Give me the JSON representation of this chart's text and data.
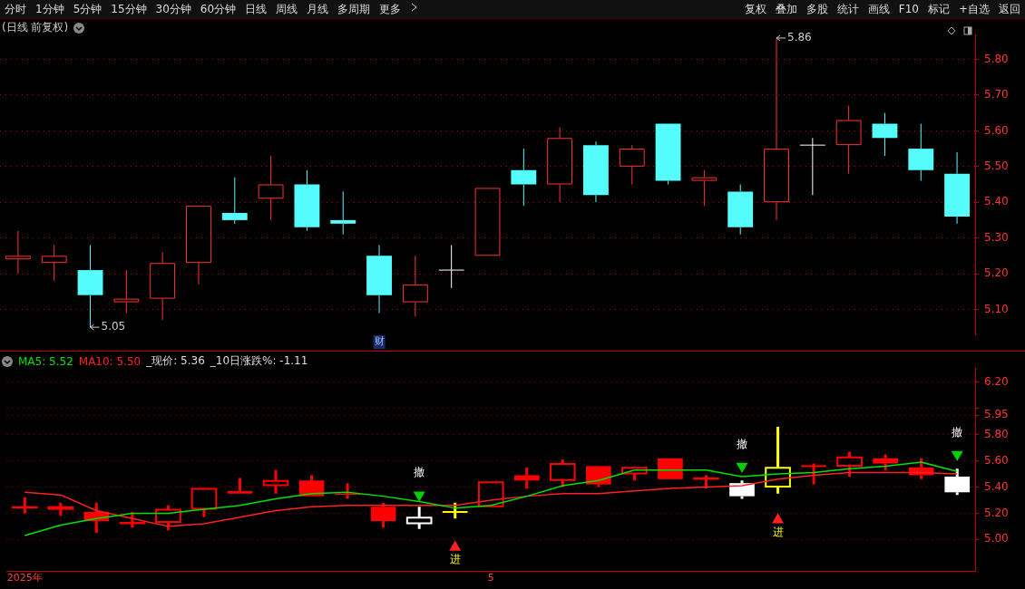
{
  "chart_data": [
    {
      "type": "other",
      "annotations": [
        "分时",
        "1分钟",
        "5分钟",
        "15分钟",
        "30分钟",
        "60分钟",
        "日线",
        "周线",
        "月线",
        "多周期",
        "更多",
        "复权",
        "叠加",
        "多股",
        "统计",
        "画线",
        "F10",
        "标记",
        "+自选",
        "返回"
      ]
    },
    {
      "type": "candlestick",
      "title": "(日线 前复权)",
      "categories": [
        null,
        null,
        null,
        null,
        null,
        null,
        null,
        null,
        null,
        null,
        "财",
        null,
        null,
        null,
        null,
        null,
        null,
        null,
        null,
        null,
        null,
        null,
        null,
        null,
        null,
        null,
        null
      ],
      "ohlc": [
        [
          5.24,
          5.32,
          5.2,
          5.25
        ],
        [
          5.23,
          5.28,
          5.18,
          5.25
        ],
        [
          5.21,
          5.28,
          5.05,
          5.14
        ],
        [
          5.12,
          5.21,
          5.09,
          5.13
        ],
        [
          5.13,
          5.26,
          5.07,
          5.23
        ],
        [
          5.23,
          5.39,
          5.17,
          5.39
        ],
        [
          5.37,
          5.47,
          5.34,
          5.35
        ],
        [
          5.41,
          5.53,
          5.35,
          5.45
        ],
        [
          5.45,
          5.49,
          5.32,
          5.33
        ],
        [
          5.35,
          5.43,
          5.31,
          5.34
        ],
        [
          5.25,
          5.28,
          5.09,
          5.14
        ],
        [
          5.12,
          5.25,
          5.08,
          5.17
        ],
        [
          5.21,
          5.28,
          5.16,
          5.21
        ],
        [
          5.25,
          5.44,
          5.25,
          5.44
        ],
        [
          5.49,
          5.55,
          5.39,
          5.45
        ],
        [
          5.45,
          5.61,
          5.4,
          5.58
        ],
        [
          5.56,
          5.57,
          5.4,
          5.42
        ],
        [
          5.5,
          5.56,
          5.45,
          5.55
        ],
        [
          5.62,
          5.62,
          5.45,
          5.46
        ],
        [
          5.46,
          5.49,
          5.39,
          5.47
        ],
        [
          5.43,
          5.45,
          5.31,
          5.33
        ],
        [
          5.4,
          5.86,
          5.35,
          5.55
        ],
        [
          5.56,
          5.58,
          5.42,
          5.56
        ],
        [
          5.56,
          5.67,
          5.48,
          5.63
        ],
        [
          5.62,
          5.65,
          5.53,
          5.58
        ],
        [
          5.55,
          5.62,
          5.46,
          5.49
        ],
        [
          5.48,
          5.54,
          5.34,
          5.36
        ]
      ],
      "colors": [
        "#ff3232",
        "#ff3232",
        "#54fcfc",
        "#ff3232",
        "#ff3232",
        "#ff3232",
        "#54fcfc",
        "#ff3232",
        "#54fcfc",
        "#54fcfc",
        "#54fcfc",
        "#ff3232",
        "#ffffff",
        "#ff3232",
        "#54fcfc",
        "#ff3232",
        "#54fcfc",
        "#ff3232",
        "#54fcfc",
        "#ff3232",
        "#54fcfc",
        "#ff3232",
        "#ffffff",
        "#ff3232",
        "#54fcfc",
        "#54fcfc",
        "#54fcfc"
      ],
      "ylim": [
        5.03,
        5.87
      ],
      "yticks": [
        {
          "value": 5.1,
          "label": "5.10"
        },
        {
          "value": 5.2,
          "label": "5.20"
        },
        {
          "value": 5.3,
          "label": "5.30"
        },
        {
          "value": 5.4,
          "label": "5.40"
        },
        {
          "value": 5.5,
          "label": "5.50"
        },
        {
          "value": 5.6,
          "label": "5.60"
        },
        {
          "value": 5.7,
          "label": "5.70"
        },
        {
          "value": 5.8,
          "label": "5.80"
        }
      ],
      "grid": "y",
      "legend": false,
      "value_labels": [
        null,
        null,
        "5.05",
        null,
        null,
        null,
        null,
        null,
        null,
        null,
        null,
        null,
        null,
        null,
        null,
        null,
        null,
        null,
        null,
        null,
        null,
        "5.86",
        null,
        null,
        null,
        null,
        null
      ]
    },
    {
      "type": "candlestick",
      "categories": [
        "2025年",
        null,
        null,
        null,
        null,
        null,
        null,
        null,
        null,
        null,
        null,
        null,
        null,
        "5",
        null,
        null,
        null,
        null,
        null,
        null,
        null,
        null,
        null,
        null,
        null,
        null,
        null
      ],
      "ohlc": [
        [
          5.24,
          5.32,
          5.2,
          5.25
        ],
        [
          5.23,
          5.28,
          5.18,
          5.25
        ],
        [
          5.21,
          5.28,
          5.05,
          5.14
        ],
        [
          5.12,
          5.21,
          5.09,
          5.13
        ],
        [
          5.13,
          5.26,
          5.07,
          5.23
        ],
        [
          5.23,
          5.39,
          5.17,
          5.39
        ],
        [
          5.37,
          5.47,
          5.34,
          5.35
        ],
        [
          5.41,
          5.53,
          5.35,
          5.45
        ],
        [
          5.45,
          5.49,
          5.32,
          5.33
        ],
        [
          5.35,
          5.43,
          5.31,
          5.34
        ],
        [
          5.25,
          5.28,
          5.09,
          5.14
        ],
        [
          5.12,
          5.25,
          5.08,
          5.17
        ],
        [
          5.21,
          5.28,
          5.16,
          5.21
        ],
        [
          5.25,
          5.44,
          5.25,
          5.44
        ],
        [
          5.49,
          5.55,
          5.39,
          5.45
        ],
        [
          5.45,
          5.61,
          5.4,
          5.58
        ],
        [
          5.56,
          5.57,
          5.4,
          5.42
        ],
        [
          5.5,
          5.56,
          5.45,
          5.55
        ],
        [
          5.62,
          5.62,
          5.45,
          5.46
        ],
        [
          5.46,
          5.49,
          5.39,
          5.47
        ],
        [
          5.43,
          5.45,
          5.31,
          5.33
        ],
        [
          5.4,
          5.86,
          5.35,
          5.55
        ],
        [
          5.56,
          5.58,
          5.42,
          5.56
        ],
        [
          5.56,
          5.67,
          5.48,
          5.63
        ],
        [
          5.62,
          5.65,
          5.53,
          5.58
        ],
        [
          5.55,
          5.62,
          5.46,
          5.49
        ],
        [
          5.48,
          5.54,
          5.34,
          5.36
        ]
      ],
      "colors": [
        "#ff0000",
        "#ff0000",
        "#ff0000",
        "#ff0000",
        "#ff0000",
        "#ff0000",
        "#ff0000",
        "#ff0000",
        "#ff0000",
        "#ff0000",
        "#ff0000",
        "#ffffff",
        "#ffff00",
        "#ff0000",
        "#ff0000",
        "#ff0000",
        "#ff0000",
        "#ff0000",
        "#ff0000",
        "#ff0000",
        "#ffffff",
        "#ffff00",
        "#ff0000",
        "#ff0000",
        "#ff0000",
        "#ff0000",
        "#ffffff"
      ],
      "series": [
        {
          "name": "MA5: 5.52",
          "type": "line",
          "color": "#00e000",
          "values": [
            5.03,
            5.11,
            5.16,
            5.2,
            5.2,
            5.23,
            5.26,
            5.31,
            5.35,
            5.36,
            5.33,
            5.29,
            5.24,
            5.26,
            5.33,
            5.41,
            5.45,
            5.53,
            5.53,
            5.53,
            5.48,
            5.5,
            5.51,
            5.54,
            5.56,
            5.59,
            5.52
          ]
        },
        {
          "name": "MA10: 5.50",
          "type": "line",
          "color": "#ff2020",
          "values": [
            5.36,
            5.34,
            5.22,
            5.16,
            5.1,
            5.12,
            5.17,
            5.22,
            5.25,
            5.26,
            5.26,
            5.26,
            5.26,
            5.3,
            5.33,
            5.35,
            5.35,
            5.37,
            5.39,
            5.4,
            5.41,
            5.46,
            5.49,
            5.51,
            5.51,
            5.51,
            5.5
          ]
        },
        {
          "type": "scatter",
          "color": "#00d000",
          "marker": "triangle",
          "values": [
            null,
            null,
            null,
            null,
            null,
            null,
            null,
            null,
            null,
            null,
            null,
            5.34,
            null,
            null,
            null,
            null,
            null,
            null,
            null,
            null,
            5.56,
            null,
            null,
            null,
            null,
            null,
            5.65
          ],
          "value_labels": [
            null,
            null,
            null,
            null,
            null,
            null,
            null,
            null,
            null,
            null,
            null,
            "撤",
            null,
            null,
            null,
            null,
            null,
            null,
            null,
            null,
            "撤",
            null,
            null,
            null,
            null,
            null,
            "撤"
          ]
        },
        {
          "type": "scatter",
          "color": "#ff2020",
          "marker": "triangle",
          "values": [
            null,
            null,
            null,
            null,
            null,
            null,
            null,
            null,
            null,
            null,
            null,
            null,
            4.94,
            null,
            null,
            null,
            null,
            null,
            null,
            null,
            null,
            5.15,
            null,
            null,
            null,
            null,
            null
          ],
          "value_labels": [
            null,
            null,
            null,
            null,
            null,
            null,
            null,
            null,
            null,
            null,
            null,
            null,
            "进",
            null,
            null,
            null,
            null,
            null,
            null,
            null,
            null,
            "进",
            null,
            null,
            null,
            null,
            null
          ]
        }
      ],
      "ylim": [
        4.76,
        6.31
      ],
      "yticks": [
        {
          "value": 5.0,
          "label": "5.00"
        },
        {
          "value": 5.2,
          "label": "5.20"
        },
        {
          "value": 5.4,
          "label": "5.40"
        },
        {
          "value": 5.6,
          "label": "5.60"
        },
        {
          "value": 5.8,
          "label": "5.80"
        },
        {
          "value": 5.95,
          "label": "5.95"
        },
        {
          "value": 6.0,
          "label": null
        },
        {
          "value": 6.2,
          "label": "6.20"
        }
      ],
      "grid": "y",
      "legend": "top left",
      "line_style": "solid",
      "annotations": [
        "_现价: 5.36",
        "_10日涨跌%: -1.11"
      ]
    }
  ]
}
